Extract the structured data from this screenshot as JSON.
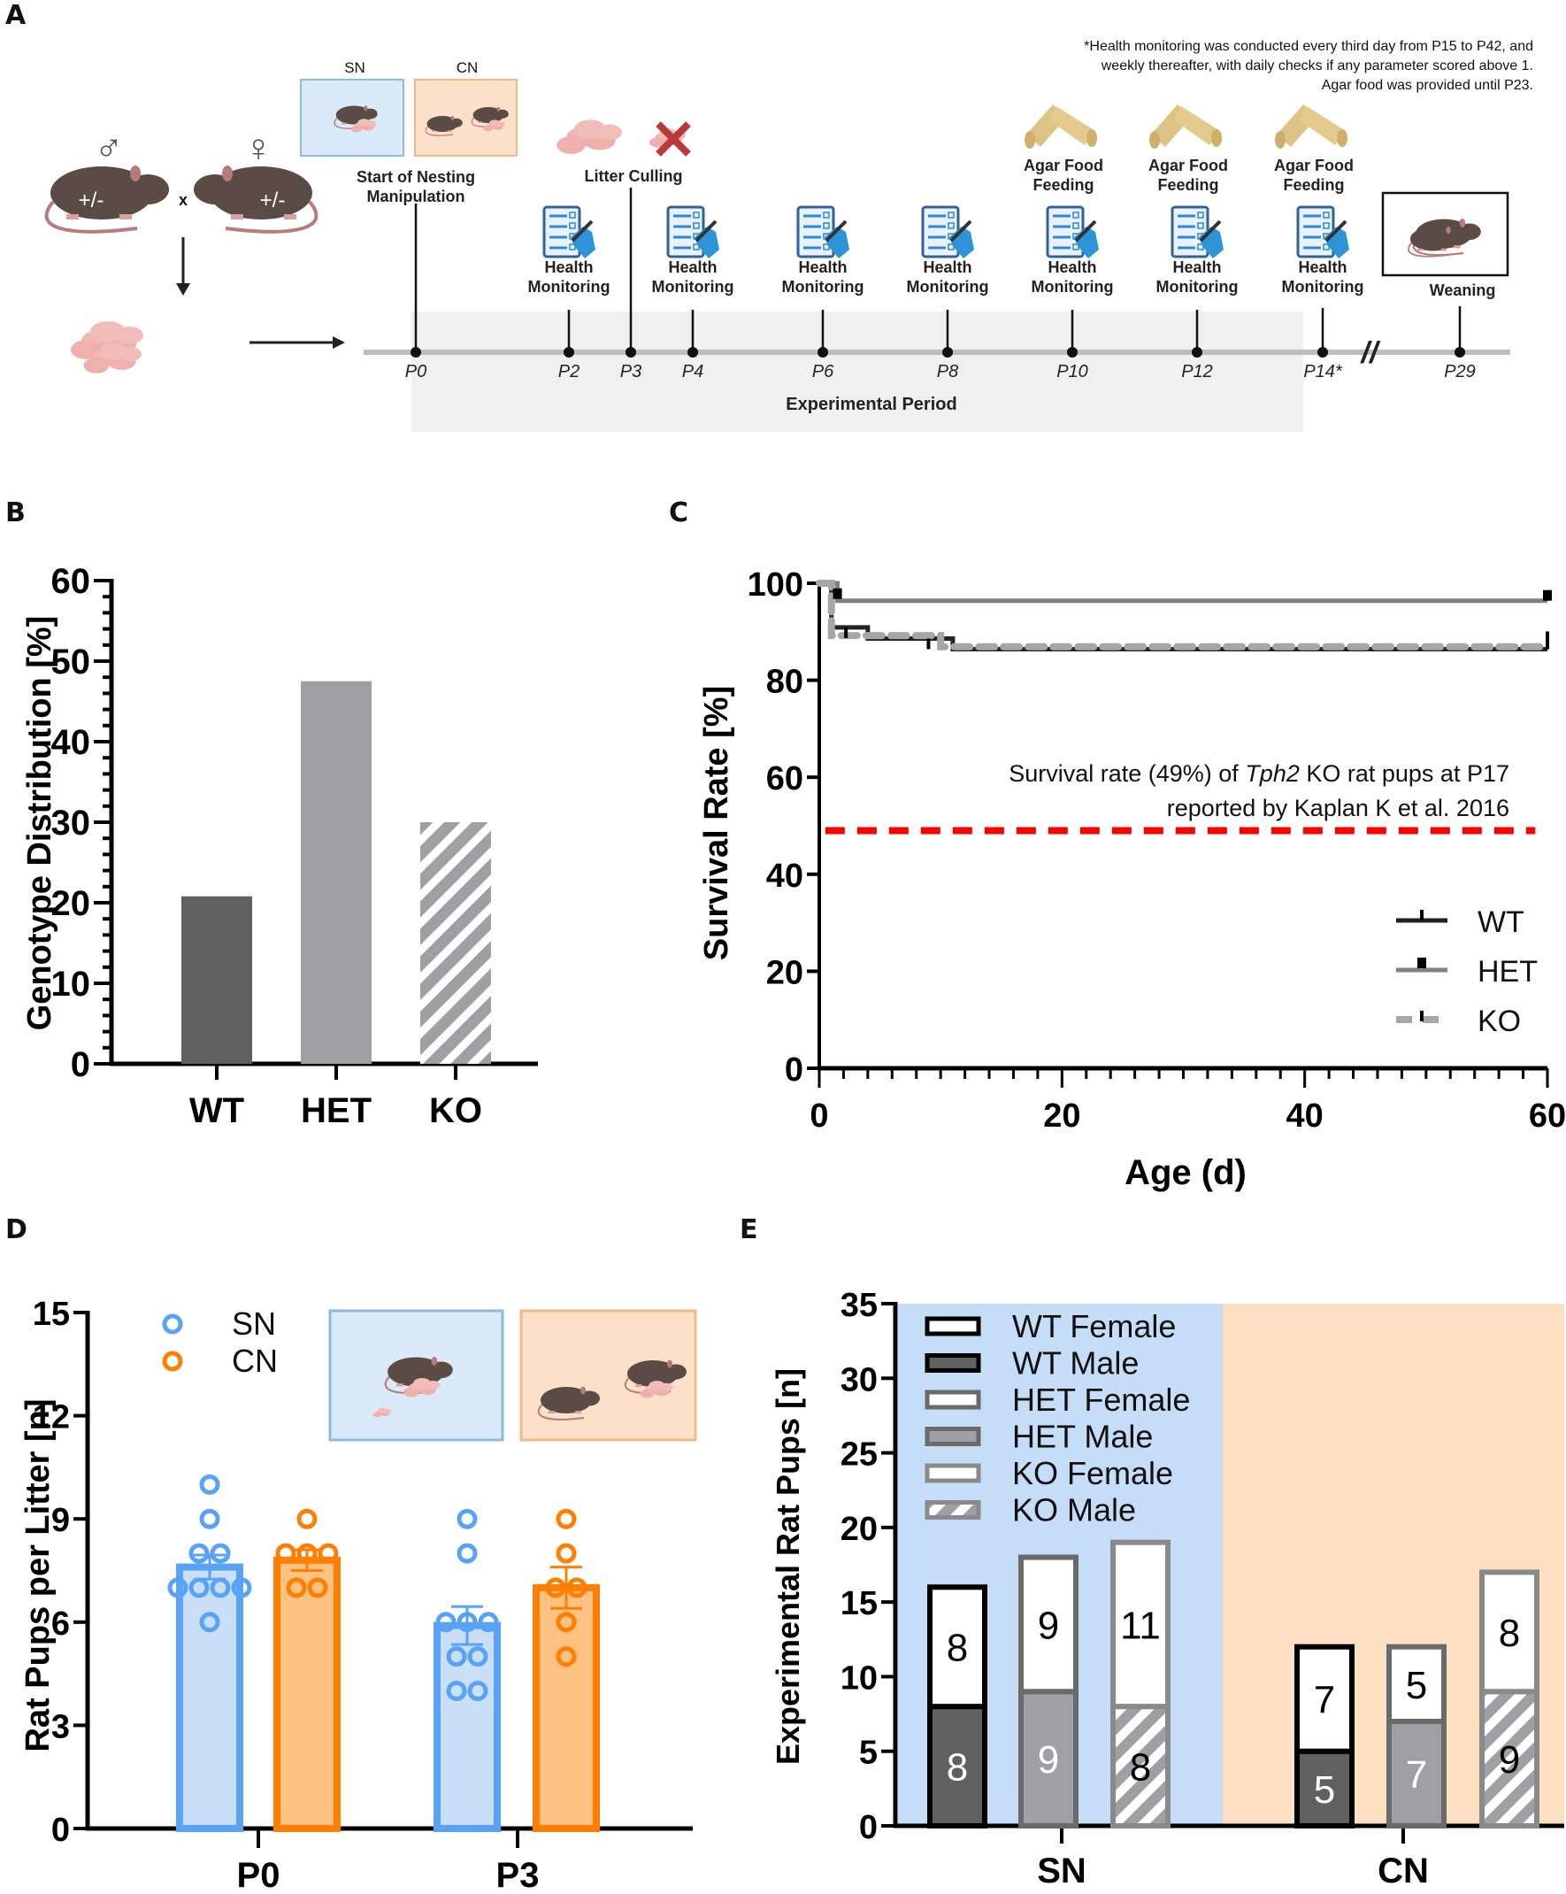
{
  "panels": {
    "A": "A",
    "B": "B",
    "C": "C",
    "D": "D",
    "E": "E"
  },
  "timeline": {
    "footnote": [
      "*Health monitoring was conducted every third day from P15 to P42, and",
      "weekly thereafter, with daily checks if any parameter scored above 1.",
      "Agar food was provided until P23."
    ],
    "breeding": {
      "male_symbol": "♂",
      "female_symbol": "♀",
      "genotype_male": "+/-",
      "genotype_female": "+/-",
      "cross": "x"
    },
    "nesting_labels": {
      "sn": "SN",
      "cn": "CN"
    },
    "events": [
      {
        "day": "P0",
        "label": [
          "Start of Nesting",
          "Manipulation"
        ],
        "icon": "nesting-boxes"
      },
      {
        "day": "P2",
        "label": [
          "Health",
          "Monitoring"
        ],
        "icon": "clipboard-icon"
      },
      {
        "day": "P3",
        "label": [
          "Litter Culling"
        ],
        "icon": "culling-icon"
      },
      {
        "day": "P4",
        "label": [
          "Health",
          "Monitoring"
        ],
        "icon": "clipboard-icon"
      },
      {
        "day": "P6",
        "label": [
          "Health",
          "Monitoring"
        ],
        "icon": "clipboard-icon"
      },
      {
        "day": "P8",
        "label": [
          "Health",
          "Monitoring"
        ],
        "icon": "clipboard-icon"
      },
      {
        "day": "P10",
        "label": [
          "Health",
          "Monitoring"
        ],
        "icon": "clipboard-icon",
        "extra": [
          "Agar Food",
          "Feeding"
        ]
      },
      {
        "day": "P12",
        "label": [
          "Health",
          "Monitoring"
        ],
        "icon": "clipboard-icon",
        "extra": [
          "Agar Food",
          "Feeding"
        ]
      },
      {
        "day": "P14*",
        "label": [
          "Health",
          "Monitoring"
        ],
        "icon": "clipboard-icon",
        "extra": [
          "Agar Food",
          "Feeding"
        ]
      },
      {
        "day": "P29",
        "label": [
          "Weaning"
        ],
        "icon": "weaning-icon"
      }
    ],
    "period_label": "Experimental Period",
    "break_mark": "//"
  },
  "chart_data": [
    {
      "panel": "B",
      "type": "bar",
      "title": "",
      "xlabel": "",
      "ylabel": "Genotype Distribution [%]",
      "categories": [
        "WT",
        "HET",
        "KO"
      ],
      "values": [
        20.8,
        47.5,
        30.0
      ],
      "ylim": [
        0,
        60
      ],
      "yticks": [
        0,
        10,
        20,
        30,
        40,
        50,
        60
      ],
      "colors": [
        "#5f5f5f",
        "#a0a0a4",
        "hatch"
      ]
    },
    {
      "panel": "C",
      "type": "line",
      "subtype": "kaplan-meier",
      "xlabel": "Age (d)",
      "ylabel": "Survival Rate [%]",
      "xlim": [
        0,
        60
      ],
      "ylim": [
        0,
        100
      ],
      "xticks": [
        0,
        20,
        40,
        60
      ],
      "yticks": [
        0,
        20,
        40,
        60,
        80,
        100
      ],
      "series": [
        {
          "name": "WT",
          "color": "#222222",
          "style": "solid",
          "steps": [
            [
              0,
              100
            ],
            [
              1,
              100
            ],
            [
              1,
              90.9
            ],
            [
              4,
              90.9
            ],
            [
              4,
              88.6
            ],
            [
              11,
              88.6
            ],
            [
              11,
              86.4
            ],
            [
              60,
              86.4
            ]
          ]
        },
        {
          "name": "HET",
          "color": "#808080",
          "style": "solid",
          "steps": [
            [
              0,
              100
            ],
            [
              1.5,
              100
            ],
            [
              1.5,
              96.4
            ],
            [
              60,
              96.4
            ]
          ]
        },
        {
          "name": "KO",
          "color": "#a6a6a6",
          "style": "dashed",
          "steps": [
            [
              0,
              100
            ],
            [
              1,
              100
            ],
            [
              1,
              89.2
            ],
            [
              10,
              89.2
            ],
            [
              10,
              86.9
            ],
            [
              60,
              86.9
            ]
          ]
        }
      ],
      "reference_line": {
        "y": 49,
        "color": "#ff0000",
        "style": "dashed"
      },
      "annotation": {
        "line1_before": "Survival rate (49%) of ",
        "line1_italic": "Tph2",
        "line1_after": " KO rat pups at P17",
        "line2": "reported by Kaplan K et al. 2016"
      },
      "legend": [
        "WT",
        "HET",
        "KO"
      ],
      "legend_position": "bottom-right"
    },
    {
      "panel": "D",
      "type": "bar",
      "subtype": "bar-with-points",
      "xlabel": "",
      "ylabel": "Rat Pups per Litter [n]",
      "categories": [
        "P0",
        "P3"
      ],
      "ylim": [
        0,
        15
      ],
      "yticks": [
        0,
        3,
        6,
        9,
        12,
        15
      ],
      "series": [
        {
          "name": "SN",
          "color": "#5aa2f5",
          "fill": "#c9dff8",
          "means": [
            7.6,
            5.9
          ],
          "sem": [
            0.35,
            0.55
          ],
          "points": [
            [
              10,
              9,
              8,
              8,
              7,
              7,
              7,
              7,
              6
            ],
            [
              9,
              8,
              6,
              6,
              6,
              5,
              5,
              4,
              4
            ]
          ]
        },
        {
          "name": "CN",
          "color": "#ff7f00",
          "fill": "#fdc181",
          "means": [
            7.8,
            7.0
          ],
          "sem": [
            0.3,
            0.6
          ],
          "points": [
            [
              9,
              8,
              8,
              8,
              7,
              7
            ],
            [
              9,
              8,
              7,
              7,
              6,
              5
            ]
          ]
        }
      ],
      "legend": [
        "SN",
        "CN"
      ],
      "legend_position": "top-left"
    },
    {
      "panel": "E",
      "type": "bar",
      "subtype": "stacked",
      "xlabel": "",
      "ylabel": "Experimental Rat Pups [n]",
      "categories": [
        "SN",
        "CN"
      ],
      "ylim": [
        0,
        35
      ],
      "yticks": [
        0,
        5,
        10,
        15,
        20,
        25,
        30,
        35
      ],
      "groups": [
        "WT",
        "HET",
        "KO"
      ],
      "series": [
        {
          "name": "WT Male",
          "values": {
            "SN": 8,
            "CN": 5
          }
        },
        {
          "name": "WT Female",
          "values": {
            "SN": 8,
            "CN": 7
          }
        },
        {
          "name": "HET Male",
          "values": {
            "SN": 9,
            "CN": 7
          }
        },
        {
          "name": "HET Female",
          "values": {
            "SN": 9,
            "CN": 5
          }
        },
        {
          "name": "KO Male",
          "values": {
            "SN": 8,
            "CN": 9
          }
        },
        {
          "name": "KO Female",
          "values": {
            "SN": 11,
            "CN": 8
          }
        }
      ],
      "legend": [
        "WT Female",
        "WT Male",
        "HET Female",
        "HET Male",
        "KO Female",
        "KO Male"
      ],
      "legend_position": "top-left",
      "background": {
        "SN": "#c6ddf7",
        "CN": "#fde0c2"
      }
    }
  ],
  "colors": {
    "sn_blue": "#5aa2f5",
    "cn_orange": "#ff7f00",
    "red_ref": "#ff0000",
    "wt_dark": "#5f5f5f",
    "het_grey": "#a0a0a4"
  }
}
